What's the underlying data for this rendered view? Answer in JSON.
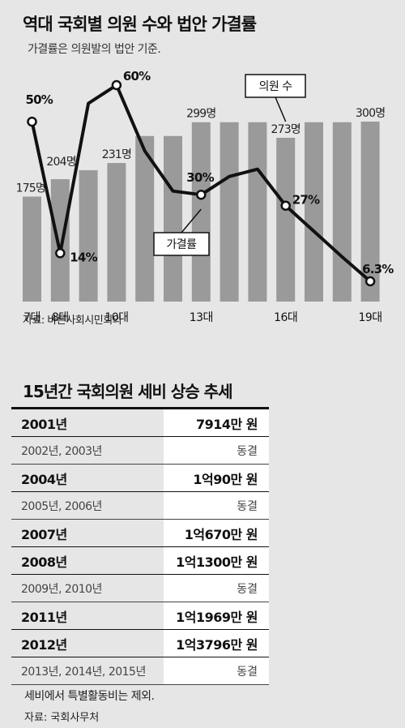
{
  "header": {
    "title": "역대 국회별 의원 수와 법안 가결률",
    "subtitle": "가결률은 의원발의 법안 기준."
  },
  "chart_source": "자료: 바른사회시민회의",
  "chart_data": {
    "type": "bar",
    "categories": [
      "7대",
      "8대",
      "9대",
      "10대",
      "11대",
      "12대",
      "13대",
      "14대",
      "15대",
      "16대",
      "17대",
      "18대",
      "19대"
    ],
    "x_tick_labels": [
      "7대",
      "8대",
      "10대",
      "13대",
      "16대",
      "19대"
    ],
    "series": [
      {
        "name": "의원 수",
        "type": "bar",
        "values": [
          175,
          204,
          219,
          231,
          276,
          276,
          299,
          299,
          299,
          273,
          299,
          299,
          300
        ],
        "labels": {
          "7대": "175명",
          "8대": "204명",
          "10대": "231명",
          "13대": "299명",
          "16대": "273명",
          "19대": "300명"
        },
        "unit": "명"
      },
      {
        "name": "가결률",
        "type": "line",
        "values": [
          50,
          14,
          55,
          60,
          42,
          31,
          30,
          35,
          37,
          27,
          20,
          13,
          6.3
        ],
        "labels": {
          "7대": "50%",
          "8대": "14%",
          "10대": "60%",
          "13대": "30%",
          "16대": "27%",
          "19대": "6.3%"
        },
        "unit": "%"
      }
    ],
    "callouts": {
      "bar": "의원 수",
      "line": "가결률"
    },
    "bar_ylim": [
      0,
      320
    ],
    "line_ylim": [
      0,
      70
    ],
    "grid": false
  },
  "table": {
    "title": "15년간 국회의원 세비 상승 추세",
    "rows": [
      {
        "year": "2001년",
        "value": "7914만 원",
        "strong": true
      },
      {
        "year": "2002년, 2003년",
        "value": "동결",
        "strong": false
      },
      {
        "year": "2004년",
        "value": "1억90만 원",
        "strong": true
      },
      {
        "year": "2005년, 2006년",
        "value": "동결",
        "strong": false
      },
      {
        "year": "2007년",
        "value": "1억670만 원",
        "strong": true
      },
      {
        "year": "2008년",
        "value": "1억1300만 원",
        "strong": true
      },
      {
        "year": "2009년, 2010년",
        "value": "동결",
        "strong": false
      },
      {
        "year": "2011년",
        "value": "1억1969만 원",
        "strong": true
      },
      {
        "year": "2012년",
        "value": "1억3796만 원",
        "strong": true
      },
      {
        "year": "2013년, 2014년, 2015년",
        "value": "동결",
        "strong": false
      }
    ],
    "note": "세비에서 특별활동비는 제외.",
    "source": "자료: 국회사무처"
  }
}
